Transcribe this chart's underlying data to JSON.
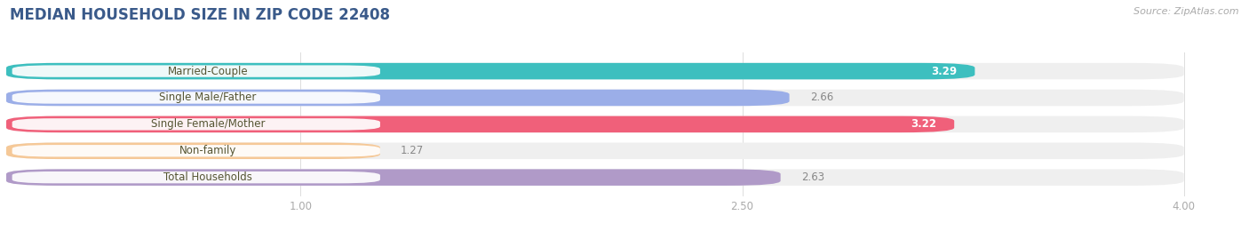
{
  "title": "MEDIAN HOUSEHOLD SIZE IN ZIP CODE 22408",
  "source": "Source: ZipAtlas.com",
  "categories": [
    "Married-Couple",
    "Single Male/Father",
    "Single Female/Mother",
    "Non-family",
    "Total Households"
  ],
  "values": [
    3.29,
    2.66,
    3.22,
    1.27,
    2.63
  ],
  "bar_colors": [
    "#3dbfbf",
    "#9baee8",
    "#f0607a",
    "#f5c897",
    "#b09ac8"
  ],
  "value_inside": [
    true,
    false,
    true,
    false,
    false
  ],
  "value_colors_inside": [
    "white",
    "#555555",
    "white",
    "#555555",
    "#555555"
  ],
  "xlim_left": 0,
  "xlim_right": 4.2,
  "xticks": [
    1.0,
    2.5,
    4.0
  ],
  "xtick_labels": [
    "1.00",
    "2.50",
    "4.00"
  ],
  "bar_height": 0.62,
  "bar_gap": 0.38,
  "background_color": "#ffffff",
  "bar_bg_color": "#efefef",
  "title_fontsize": 12,
  "label_fontsize": 8.5,
  "value_fontsize": 8.5,
  "source_fontsize": 8,
  "title_color": "#3a5a8a",
  "label_color": "#555533",
  "value_outside_color": "#888888"
}
